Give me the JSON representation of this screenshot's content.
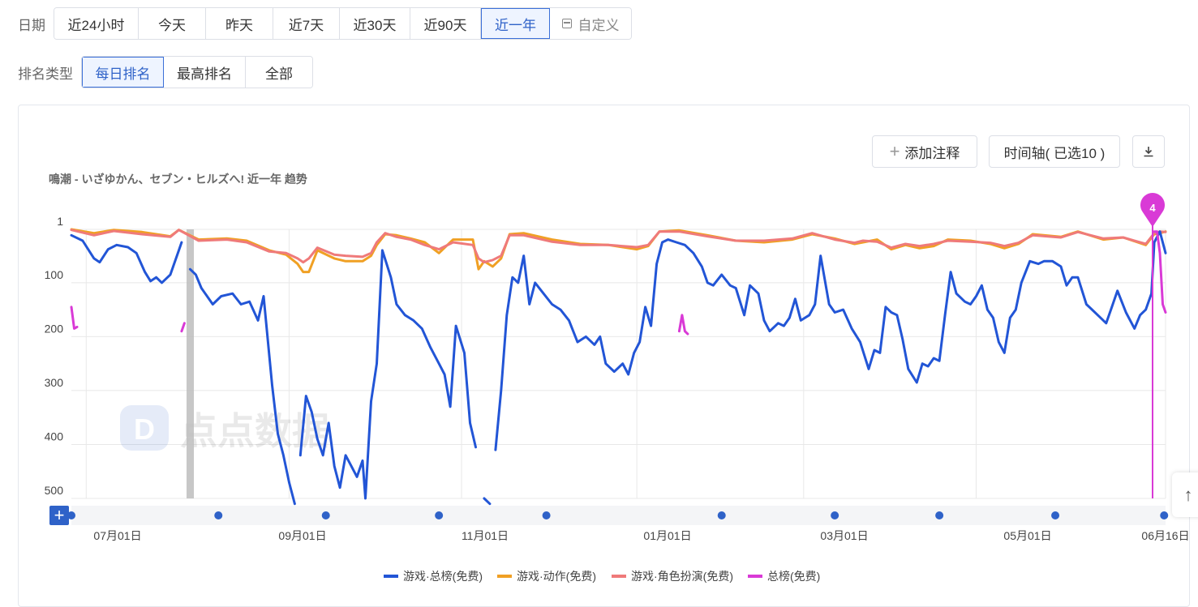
{
  "filters": {
    "date_label": "日期",
    "date_options": [
      "近24小时",
      "今天",
      "昨天",
      "近7天",
      "近30天",
      "近90天",
      "近一年"
    ],
    "date_active": "近一年",
    "custom_label": "自定义",
    "rank_label": "排名类型",
    "rank_options": [
      "每日排名",
      "最高排名",
      "全部"
    ],
    "rank_active": "每日排名"
  },
  "toolbar": {
    "add_note": "添加注释",
    "timeline": "时间轴( 已选10 )"
  },
  "watermark": "点点数据",
  "colors": {
    "total": "#2255d6",
    "action": "#f0a024",
    "rpg": "#ef7a7a",
    "overall": "#d93ad6",
    "grid": "#e8e8e8"
  },
  "icons": [
    "plus-icon",
    "calendar-icon",
    "download-icon",
    "arrow-up-icon",
    "map-pin-icon"
  ],
  "chart_data": {
    "type": "line",
    "title": "鳴潮 - いざゆかん、セブン・ヒルズへ!  近一年 趋势",
    "y_axis": {
      "reversed": true,
      "ticks": [
        "1",
        "100",
        "200",
        "300",
        "400",
        "500"
      ],
      "range": [
        1,
        500
      ]
    },
    "x_axis": {
      "range": [
        "2023-06-16",
        "2024-06-16"
      ],
      "tick_labels": [
        "07月01日",
        "09月01日",
        "11月01日",
        "01月01日",
        "03月01日",
        "05月01日",
        "06月16日"
      ]
    },
    "grid": true,
    "legend": "bottom-center",
    "marker_label": "4",
    "series": [
      {
        "name": "游戏·总榜(免费)",
        "color": "#2255d6",
        "points": [
          [
            0,
            12
          ],
          [
            4,
            22
          ],
          [
            8,
            55
          ],
          [
            10,
            62
          ],
          [
            13,
            38
          ],
          [
            16,
            30
          ],
          [
            20,
            34
          ],
          [
            23,
            45
          ],
          [
            26,
            80
          ],
          [
            28,
            97
          ],
          [
            30,
            90
          ],
          [
            32,
            100
          ],
          [
            35,
            85
          ],
          [
            38,
            40
          ],
          [
            39,
            25
          ],
          null,
          [
            42,
            75
          ],
          [
            44,
            85
          ],
          [
            46,
            110
          ],
          [
            50,
            140
          ],
          [
            53,
            125
          ],
          [
            57,
            120
          ],
          [
            60,
            140
          ],
          [
            63,
            135
          ],
          [
            66,
            170
          ],
          [
            68,
            125
          ],
          [
            71,
            290
          ],
          [
            73,
            380
          ],
          [
            75,
            420
          ],
          [
            77,
            470
          ],
          [
            79,
            510
          ],
          null,
          [
            81,
            420
          ],
          [
            83,
            310
          ],
          [
            85,
            340
          ],
          [
            87,
            390
          ],
          [
            89,
            420
          ],
          [
            91,
            360
          ],
          [
            93,
            440
          ],
          [
            95,
            480
          ],
          [
            97,
            420
          ],
          [
            99,
            440
          ],
          [
            101,
            460
          ],
          [
            103,
            430
          ],
          [
            104,
            500
          ],
          [
            106,
            320
          ],
          [
            108,
            250
          ],
          [
            110,
            40
          ],
          [
            113,
            90
          ],
          [
            115,
            140
          ],
          [
            118,
            160
          ],
          [
            121,
            170
          ],
          [
            124,
            185
          ],
          [
            127,
            220
          ],
          [
            130,
            250
          ],
          [
            132,
            270
          ],
          [
            134,
            330
          ],
          [
            136,
            180
          ],
          [
            139,
            230
          ],
          [
            141,
            360
          ],
          [
            143,
            405
          ],
          null,
          [
            146,
            500
          ],
          [
            148,
            510
          ],
          null,
          [
            150,
            410
          ],
          [
            152,
            300
          ],
          [
            154,
            160
          ],
          [
            156,
            90
          ],
          [
            158,
            100
          ],
          [
            160,
            50
          ],
          [
            162,
            140
          ],
          [
            164,
            100
          ],
          [
            167,
            120
          ],
          [
            170,
            140
          ],
          [
            173,
            150
          ],
          [
            176,
            170
          ],
          [
            179,
            210
          ],
          [
            182,
            200
          ],
          [
            185,
            215
          ],
          [
            187,
            200
          ],
          [
            189,
            250
          ],
          [
            192,
            265
          ],
          [
            195,
            250
          ],
          [
            197,
            270
          ],
          [
            199,
            230
          ],
          [
            201,
            210
          ],
          [
            203,
            145
          ],
          [
            205,
            180
          ],
          [
            207,
            65
          ],
          [
            209,
            25
          ],
          [
            211,
            20
          ],
          [
            214,
            25
          ],
          [
            217,
            30
          ],
          [
            220,
            45
          ],
          [
            223,
            70
          ],
          [
            225,
            100
          ],
          [
            227,
            105
          ],
          [
            230,
            85
          ],
          [
            233,
            105
          ],
          [
            235,
            110
          ],
          [
            238,
            160
          ],
          [
            240,
            105
          ],
          [
            243,
            120
          ],
          [
            245,
            170
          ],
          [
            247,
            190
          ],
          [
            250,
            175
          ],
          [
            252,
            180
          ],
          [
            254,
            165
          ],
          [
            256,
            130
          ],
          [
            258,
            170
          ],
          [
            261,
            160
          ],
          [
            263,
            140
          ],
          [
            265,
            50
          ],
          [
            268,
            140
          ],
          [
            270,
            155
          ],
          [
            273,
            150
          ],
          [
            276,
            185
          ],
          [
            279,
            210
          ],
          [
            282,
            260
          ],
          [
            284,
            225
          ],
          [
            286,
            230
          ],
          [
            288,
            145
          ],
          [
            290,
            155
          ],
          [
            292,
            160
          ],
          [
            294,
            205
          ],
          [
            296,
            260
          ],
          [
            299,
            285
          ],
          [
            301,
            250
          ],
          [
            303,
            255
          ],
          [
            305,
            240
          ],
          [
            307,
            245
          ],
          [
            309,
            160
          ],
          [
            311,
            80
          ],
          [
            313,
            120
          ],
          [
            316,
            135
          ],
          [
            318,
            140
          ],
          [
            320,
            125
          ],
          [
            322,
            105
          ],
          [
            324,
            150
          ],
          [
            326,
            165
          ],
          [
            328,
            210
          ],
          [
            330,
            230
          ],
          [
            332,
            165
          ],
          [
            334,
            150
          ],
          [
            336,
            100
          ],
          [
            339,
            60
          ],
          [
            342,
            65
          ],
          [
            344,
            60
          ],
          [
            347,
            60
          ],
          [
            350,
            70
          ],
          [
            352,
            105
          ],
          [
            354,
            90
          ],
          [
            356,
            90
          ],
          [
            359,
            140
          ],
          [
            361,
            150
          ],
          [
            364,
            165
          ],
          [
            366,
            175
          ],
          [
            368,
            145
          ],
          [
            370,
            115
          ],
          [
            373,
            155
          ],
          [
            376,
            185
          ],
          [
            378,
            160
          ],
          [
            380,
            150
          ],
          [
            382,
            120
          ],
          [
            383,
            25
          ],
          [
            385,
            5
          ],
          [
            387,
            45
          ]
        ]
      },
      {
        "name": "游戏·动作(免费)",
        "color": "#f0a024",
        "points": [
          [
            0,
            1
          ],
          [
            8,
            8
          ],
          [
            15,
            2
          ],
          [
            25,
            6
          ],
          [
            35,
            14
          ],
          [
            38,
            2
          ],
          [
            45,
            20
          ],
          [
            55,
            18
          ],
          [
            62,
            22
          ],
          [
            70,
            40
          ],
          [
            76,
            48
          ],
          [
            80,
            65
          ],
          [
            82,
            80
          ],
          [
            84,
            80
          ],
          [
            87,
            40
          ],
          [
            93,
            55
          ],
          [
            97,
            60
          ],
          [
            103,
            60
          ],
          [
            106,
            50
          ],
          [
            108,
            30
          ],
          [
            111,
            10
          ],
          [
            115,
            12
          ],
          [
            120,
            18
          ],
          [
            125,
            25
          ],
          [
            130,
            45
          ],
          [
            135,
            20
          ],
          [
            142,
            20
          ],
          [
            144,
            75
          ],
          [
            146,
            60
          ],
          [
            149,
            70
          ],
          [
            152,
            55
          ],
          [
            155,
            10
          ],
          [
            160,
            8
          ],
          [
            170,
            20
          ],
          [
            180,
            28
          ],
          [
            190,
            30
          ],
          [
            200,
            38
          ],
          [
            204,
            32
          ],
          [
            208,
            5
          ],
          [
            215,
            3
          ],
          [
            225,
            12
          ],
          [
            235,
            22
          ],
          [
            245,
            25
          ],
          [
            255,
            20
          ],
          [
            262,
            10
          ],
          [
            270,
            18
          ],
          [
            277,
            28
          ],
          [
            280,
            25
          ],
          [
            285,
            20
          ],
          [
            290,
            38
          ],
          [
            295,
            30
          ],
          [
            300,
            36
          ],
          [
            305,
            32
          ],
          [
            310,
            20
          ],
          [
            318,
            22
          ],
          [
            325,
            28
          ],
          [
            330,
            36
          ],
          [
            335,
            28
          ],
          [
            340,
            10
          ],
          [
            350,
            15
          ],
          [
            356,
            5
          ],
          [
            365,
            20
          ],
          [
            372,
            16
          ],
          [
            380,
            30
          ],
          [
            383,
            10
          ],
          [
            385,
            8
          ],
          [
            387,
            5
          ]
        ]
      },
      {
        "name": "游戏·角色扮演(免费)",
        "color": "#ef7a7a",
        "points": [
          [
            0,
            2
          ],
          [
            8,
            12
          ],
          [
            15,
            4
          ],
          [
            25,
            10
          ],
          [
            35,
            15
          ],
          [
            38,
            2
          ],
          [
            45,
            22
          ],
          [
            55,
            20
          ],
          [
            62,
            25
          ],
          [
            70,
            42
          ],
          [
            76,
            45
          ],
          [
            80,
            55
          ],
          [
            82,
            62
          ],
          [
            84,
            55
          ],
          [
            87,
            35
          ],
          [
            93,
            48
          ],
          [
            97,
            50
          ],
          [
            103,
            52
          ],
          [
            106,
            45
          ],
          [
            108,
            25
          ],
          [
            111,
            8
          ],
          [
            115,
            15
          ],
          [
            120,
            20
          ],
          [
            125,
            30
          ],
          [
            130,
            38
          ],
          [
            135,
            25
          ],
          [
            142,
            30
          ],
          [
            144,
            55
          ],
          [
            146,
            62
          ],
          [
            149,
            58
          ],
          [
            152,
            50
          ],
          [
            155,
            12
          ],
          [
            160,
            12
          ],
          [
            170,
            24
          ],
          [
            180,
            30
          ],
          [
            190,
            30
          ],
          [
            200,
            34
          ],
          [
            204,
            30
          ],
          [
            208,
            5
          ],
          [
            215,
            5
          ],
          [
            225,
            14
          ],
          [
            235,
            22
          ],
          [
            245,
            22
          ],
          [
            255,
            18
          ],
          [
            262,
            8
          ],
          [
            270,
            20
          ],
          [
            277,
            26
          ],
          [
            280,
            22
          ],
          [
            285,
            24
          ],
          [
            290,
            35
          ],
          [
            295,
            28
          ],
          [
            300,
            32
          ],
          [
            305,
            28
          ],
          [
            310,
            22
          ],
          [
            318,
            24
          ],
          [
            325,
            26
          ],
          [
            330,
            32
          ],
          [
            335,
            26
          ],
          [
            340,
            12
          ],
          [
            350,
            16
          ],
          [
            356,
            6
          ],
          [
            365,
            18
          ],
          [
            372,
            16
          ],
          [
            380,
            28
          ],
          [
            383,
            8
          ],
          [
            385,
            5
          ],
          [
            387,
            6
          ]
        ]
      },
      {
        "name": "总榜(免费)",
        "color": "#d93ad6",
        "points": [
          [
            0,
            145
          ],
          [
            1,
            185
          ],
          [
            2,
            182
          ],
          null,
          [
            39,
            190
          ],
          [
            40,
            175
          ],
          null,
          [
            215,
            190
          ],
          [
            216,
            160
          ],
          [
            217,
            190
          ],
          [
            218,
            195
          ],
          null,
          [
            383,
            5
          ],
          [
            384,
            5
          ],
          [
            385,
            45
          ],
          [
            386,
            140
          ],
          [
            387,
            155
          ]
        ]
      }
    ]
  }
}
